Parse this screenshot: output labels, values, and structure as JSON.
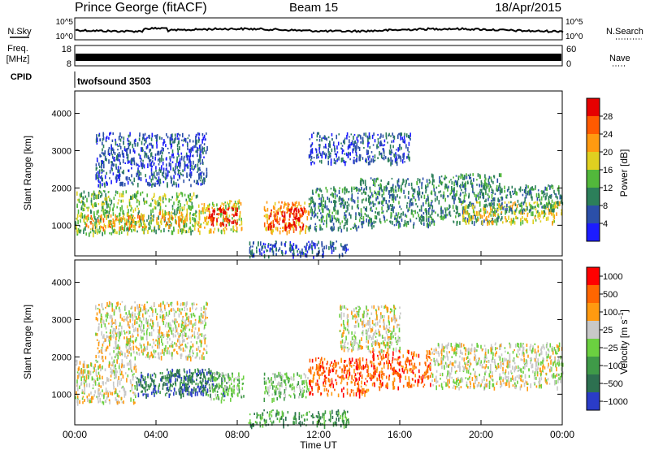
{
  "header": {
    "station": "Prince George (fitACF)",
    "beam": "Beam 15",
    "date": "18/Apr/2015"
  },
  "left_labels": {
    "nsky": "N.Sky",
    "freq_line1": "Freq.",
    "freq_line2": "[MHz]",
    "cpid": "CPID"
  },
  "right_labels": {
    "nsearch": "N.Search",
    "nave": "Nave"
  },
  "cpid_value": "twofsound 3503",
  "top_axes": {
    "noise_ticks_left": [
      "10^5",
      "10^0"
    ],
    "noise_ticks_right": [
      "10^5",
      "10^0"
    ],
    "freq_ticks_left": [
      "18",
      "8"
    ],
    "nave_ticks_right": [
      "60",
      "0"
    ]
  },
  "chart_data": [
    {
      "type": "heatmap",
      "parameter": "Power",
      "ylabel": "Slant Range [km]",
      "yticks": [
        "4000",
        "3000",
        "2000",
        "1000"
      ],
      "ylim": [
        180,
        4600
      ],
      "xlim": [
        0,
        24
      ],
      "colorbar": {
        "label": "Power [dB]",
        "ticks": [
          "28",
          "24",
          "20",
          "16",
          "12",
          "8",
          "4"
        ],
        "colors": [
          "#1c1cff",
          "#2b4fa8",
          "#2c7f5a",
          "#52b83b",
          "#e0d020",
          "#ff9a10",
          "#ff5a00",
          "#e60000"
        ],
        "range": [
          0,
          32
        ]
      },
      "regions": [
        {
          "t0": 0.0,
          "t1": 3.5,
          "r0": 800,
          "r1": 1950,
          "level": 3
        },
        {
          "t0": 0.5,
          "t1": 3.5,
          "r0": 950,
          "r1": 1300,
          "level": 5
        },
        {
          "t0": 3.5,
          "t1": 6.0,
          "r0": 850,
          "r1": 1900,
          "level": 3
        },
        {
          "t0": 4.0,
          "t1": 5.5,
          "r0": 1000,
          "r1": 1400,
          "level": 5
        },
        {
          "t0": 6.0,
          "t1": 8.2,
          "r0": 850,
          "r1": 1700,
          "level": 4
        },
        {
          "t0": 6.5,
          "t1": 8.0,
          "r0": 1000,
          "r1": 1500,
          "level": 7
        },
        {
          "t0": 9.3,
          "t1": 11.5,
          "r0": 850,
          "r1": 1650,
          "level": 5
        },
        {
          "t0": 9.5,
          "t1": 11.3,
          "r0": 950,
          "r1": 1500,
          "level": 7
        },
        {
          "t0": 11.5,
          "t1": 14.0,
          "r0": 900,
          "r1": 2050,
          "level": 2
        },
        {
          "t0": 14.0,
          "t1": 17.5,
          "r0": 1000,
          "r1": 2300,
          "level": 2
        },
        {
          "t0": 17.5,
          "t1": 21.0,
          "r0": 1100,
          "r1": 2400,
          "level": 2
        },
        {
          "t0": 19.0,
          "t1": 24.0,
          "r0": 1100,
          "r1": 1650,
          "level": 4
        },
        {
          "t0": 21.0,
          "t1": 24.0,
          "r0": 1400,
          "r1": 2100,
          "level": 2
        },
        {
          "t0": 1.0,
          "t1": 6.5,
          "r0": 2100,
          "r1": 3500,
          "level": 1
        },
        {
          "t0": 11.5,
          "t1": 16.5,
          "r0": 2700,
          "r1": 3500,
          "level": 1
        },
        {
          "t0": 8.5,
          "t1": 13.5,
          "r0": 180,
          "r1": 600,
          "level": 1
        }
      ]
    },
    {
      "type": "heatmap",
      "parameter": "Velocity",
      "ylabel": "Slant Range [km]",
      "yticks": [
        "4000",
        "3000",
        "2000",
        "1000"
      ],
      "ylim": [
        180,
        4600
      ],
      "xlim": [
        0,
        24
      ],
      "colorbar": {
        "label": "Velocity [m s^-1]",
        "ticks": [
          "1000",
          "500",
          "100",
          "25",
          "−25",
          "−100",
          "−500",
          "−1000"
        ],
        "colors": [
          "#2a3cc8",
          "#2d7050",
          "#3f9a48",
          "#6bd040",
          "#c8c8c8",
          "#ff9a10",
          "#ff6600",
          "#ff0000"
        ]
      },
      "regions": [
        {
          "t0": 0.0,
          "t1": 3.0,
          "r0": 800,
          "r1": 1950,
          "level": 4
        },
        {
          "t0": 3.0,
          "t1": 6.5,
          "r0": 1000,
          "r1": 1600,
          "level": 1
        },
        {
          "t0": 4.5,
          "t1": 7.5,
          "r0": 1000,
          "r1": 1700,
          "level": 1
        },
        {
          "t0": 1.0,
          "t1": 6.5,
          "r0": 2000,
          "r1": 3500,
          "level": 4
        },
        {
          "t0": 6.5,
          "t1": 8.3,
          "r0": 850,
          "r1": 1600,
          "level": 3
        },
        {
          "t0": 9.3,
          "t1": 11.5,
          "r0": 900,
          "r1": 1600,
          "level": 3
        },
        {
          "t0": 11.5,
          "t1": 14.5,
          "r0": 1000,
          "r1": 2000,
          "level": 6
        },
        {
          "t0": 14.5,
          "t1": 17.5,
          "r0": 1200,
          "r1": 2200,
          "level": 6
        },
        {
          "t0": 13.0,
          "t1": 16.0,
          "r0": 2200,
          "r1": 3400,
          "level": 4
        },
        {
          "t0": 17.5,
          "t1": 24.0,
          "r0": 1200,
          "r1": 2400,
          "level": 4
        },
        {
          "t0": 8.5,
          "t1": 13.5,
          "r0": 180,
          "r1": 600,
          "level": 2
        }
      ]
    }
  ],
  "xaxis": {
    "ticks": [
      "00:00",
      "04:00",
      "08:00",
      "12:00",
      "16:00",
      "20:00",
      "00:00"
    ],
    "label": "Time UT"
  }
}
